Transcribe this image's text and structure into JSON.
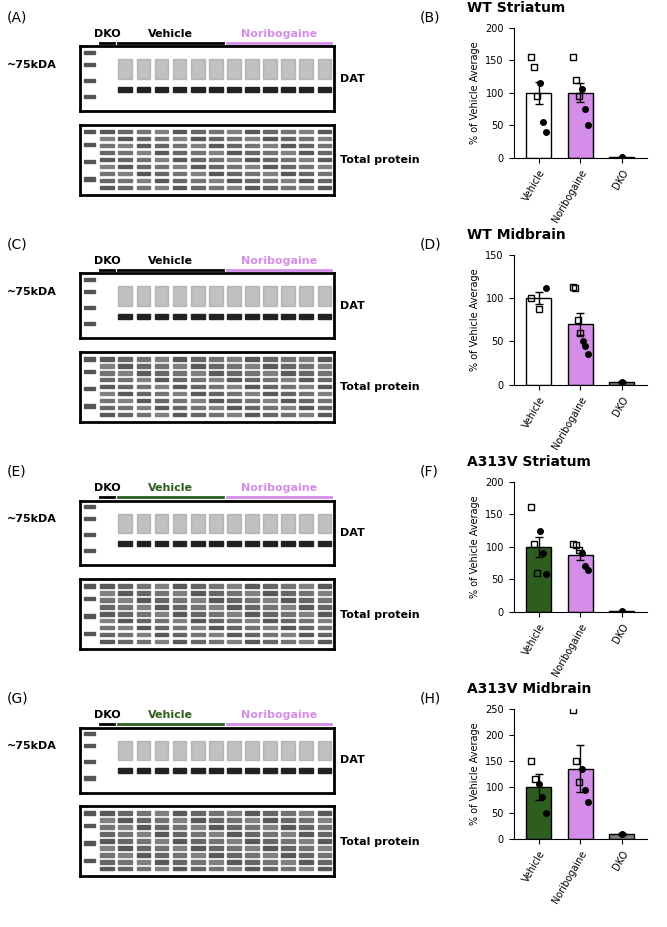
{
  "panels": [
    {
      "title": "WT Striatum",
      "blot_letter": "(A)",
      "chart_letter": "(B)",
      "marker_label": "~75kDA",
      "lanes": [
        {
          "label": "DKO",
          "color": "#000000"
        },
        {
          "label": "Vehicle",
          "color": "#000000"
        },
        {
          "label": "Noribogaine",
          "color": "#d48de8"
        }
      ],
      "bands": [
        "DAT",
        "Total protein"
      ]
    },
    {
      "title": "WT Midbrain",
      "blot_letter": "(C)",
      "chart_letter": "(D)",
      "marker_label": "~75kDA",
      "lanes": [
        {
          "label": "DKO",
          "color": "#000000"
        },
        {
          "label": "Vehicle",
          "color": "#000000"
        },
        {
          "label": "Noribogaine",
          "color": "#d48de8"
        }
      ],
      "bands": [
        "DAT",
        "Total protein"
      ]
    },
    {
      "title": "A313V Striatum",
      "blot_letter": "(E)",
      "chart_letter": "(F)",
      "marker_label": "~75kDA",
      "lanes": [
        {
          "label": "DKO",
          "color": "#000000"
        },
        {
          "label": "Vehicle",
          "color": "#2e5e1f"
        },
        {
          "label": "Noribogaine",
          "color": "#d48de8"
        }
      ],
      "bands": [
        "DAT",
        "Total protein"
      ]
    },
    {
      "title": "A313V Midbrain",
      "blot_letter": "(G)",
      "chart_letter": "(H)",
      "marker_label": "~75kDA",
      "lanes": [
        {
          "label": "DKO",
          "color": "#000000"
        },
        {
          "label": "Vehicle",
          "color": "#2e5e1f"
        },
        {
          "label": "Noribogaine",
          "color": "#d48de8"
        }
      ],
      "bands": [
        "DAT",
        "Total protein"
      ]
    }
  ],
  "chart_data": [
    {
      "type": "bar",
      "y_label": "% of Vehicle Average",
      "categories": [
        "Vehicle",
        "Noribogaine",
        "DKO"
      ],
      "values": [
        100,
        100,
        0.5
      ],
      "errors": [
        17,
        15,
        0
      ],
      "colors": [
        "#ffffff",
        "#d48de8",
        "#808080"
      ],
      "points": [
        [
          {
            "marker": "square",
            "values": [
              155,
              140,
              95
            ]
          },
          {
            "marker": "circle",
            "values": [
              115,
              55,
              40
            ]
          }
        ],
        [
          {
            "marker": "square",
            "values": [
              155,
              120,
              95
            ]
          },
          {
            "marker": "circle",
            "values": [
              105,
              75,
              50
            ]
          }
        ],
        [
          {
            "marker": "circle",
            "values": [
              0.5
            ]
          }
        ]
      ],
      "ylim": [
        0,
        200
      ],
      "yticks": [
        0,
        50,
        100,
        150,
        200
      ]
    },
    {
      "type": "bar",
      "y_label": "% of Vehicle Average",
      "categories": [
        "Vehicle",
        "Noribogaine",
        "DKO"
      ],
      "values": [
        100,
        70,
        3
      ],
      "errors": [
        7,
        13,
        1
      ],
      "colors": [
        "#ffffff",
        "#d48de8",
        "#808080"
      ],
      "points": [
        [
          {
            "marker": "square",
            "values": [
              100,
              88
            ]
          },
          {
            "marker": "circle",
            "values": [
              112
            ]
          }
        ],
        [
          {
            "marker": "square",
            "values": [
              113,
              112,
              75,
              60
            ]
          },
          {
            "marker": "circle",
            "values": [
              50,
              45,
              35
            ]
          }
        ],
        [
          {
            "marker": "circle",
            "values": [
              3
            ]
          }
        ]
      ],
      "ylim": [
        0,
        150
      ],
      "yticks": [
        0,
        50,
        100,
        150
      ]
    },
    {
      "type": "bar",
      "y_label": "% of Vehicle Average",
      "categories": [
        "Vehicle",
        "Noribogaine",
        "DKO"
      ],
      "values": [
        100,
        88,
        1
      ],
      "errors": [
        15,
        8,
        0
      ],
      "colors": [
        "#2e5e1f",
        "#d48de8",
        "#808080"
      ],
      "points": [
        [
          {
            "marker": "square",
            "values": [
              162,
              105,
              60
            ]
          },
          {
            "marker": "circle",
            "values": [
              125,
              90,
              58
            ]
          }
        ],
        [
          {
            "marker": "square",
            "values": [
              105,
              103,
              95
            ]
          },
          {
            "marker": "circle",
            "values": [
              90,
              70,
              65
            ]
          }
        ],
        [
          {
            "marker": "circle",
            "values": [
              1
            ]
          }
        ]
      ],
      "ylim": [
        0,
        200
      ],
      "yticks": [
        0,
        50,
        100,
        150,
        200
      ]
    },
    {
      "type": "bar",
      "y_label": "% of Vehicle Average",
      "categories": [
        "Vehicle",
        "Noribogaine",
        "DKO"
      ],
      "values": [
        100,
        135,
        10
      ],
      "errors": [
        25,
        45,
        2
      ],
      "colors": [
        "#2e5e1f",
        "#d48de8",
        "#808080"
      ],
      "points": [
        [
          {
            "marker": "square",
            "values": [
              150,
              115
            ]
          },
          {
            "marker": "circle",
            "values": [
              105,
              80,
              50
            ]
          }
        ],
        [
          {
            "marker": "square",
            "values": [
              248,
              150,
              110
            ]
          },
          {
            "marker": "circle",
            "values": [
              135,
              95,
              72
            ]
          }
        ],
        [
          {
            "marker": "circle",
            "values": [
              10
            ]
          }
        ]
      ],
      "ylim": [
        0,
        250
      ],
      "yticks": [
        0,
        50,
        100,
        150,
        200,
        250
      ]
    }
  ]
}
